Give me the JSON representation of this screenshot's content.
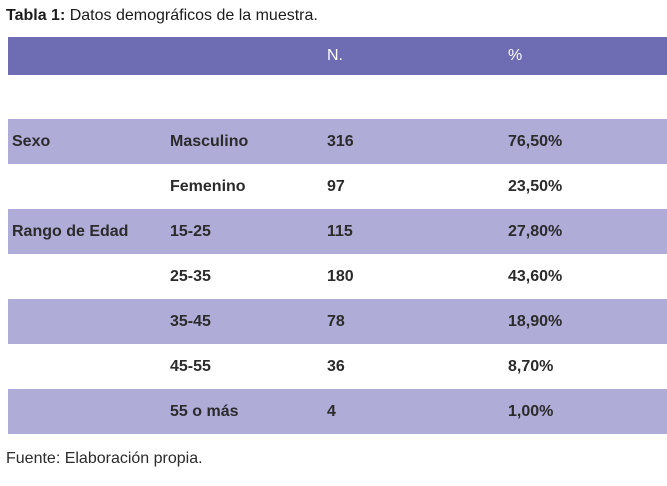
{
  "page": {
    "title_prefix": "Tabla 1:",
    "title_text": " Datos demográficos de la muestra.",
    "footer_source": "Fuente: Elaboración propia."
  },
  "table": {
    "header": {
      "group_label": "",
      "category_label": "",
      "n_label": "N.",
      "pct_label": "%"
    },
    "rows": [
      {
        "group": "Sexo",
        "category": "Masculino",
        "n": "316",
        "pct": "76,50%"
      },
      {
        "group": "",
        "category": "Femenino",
        "n": "97",
        "pct": "23,50%"
      },
      {
        "group": "Rango de Edad",
        "category": "15-25",
        "n": "115",
        "pct": "27,80%"
      },
      {
        "group": "",
        "category": "25-35",
        "n": "180",
        "pct": "43,60%"
      },
      {
        "group": "",
        "category": "35-45",
        "n": "78",
        "pct": "18,90%"
      },
      {
        "group": "",
        "category": "45-55",
        "n": "36",
        "pct": "8,70%"
      },
      {
        "group": "",
        "category": "55 o más",
        "n": "4",
        "pct": "1,00%"
      }
    ]
  },
  "colors": {
    "header_bg": "#6e6cb3",
    "alt_row_bg": "#afacd8",
    "row_bg": "#ffffff",
    "header_text": "#ffffff",
    "body_text": "#2b2b2b",
    "title_text": "#1c1c1c"
  }
}
